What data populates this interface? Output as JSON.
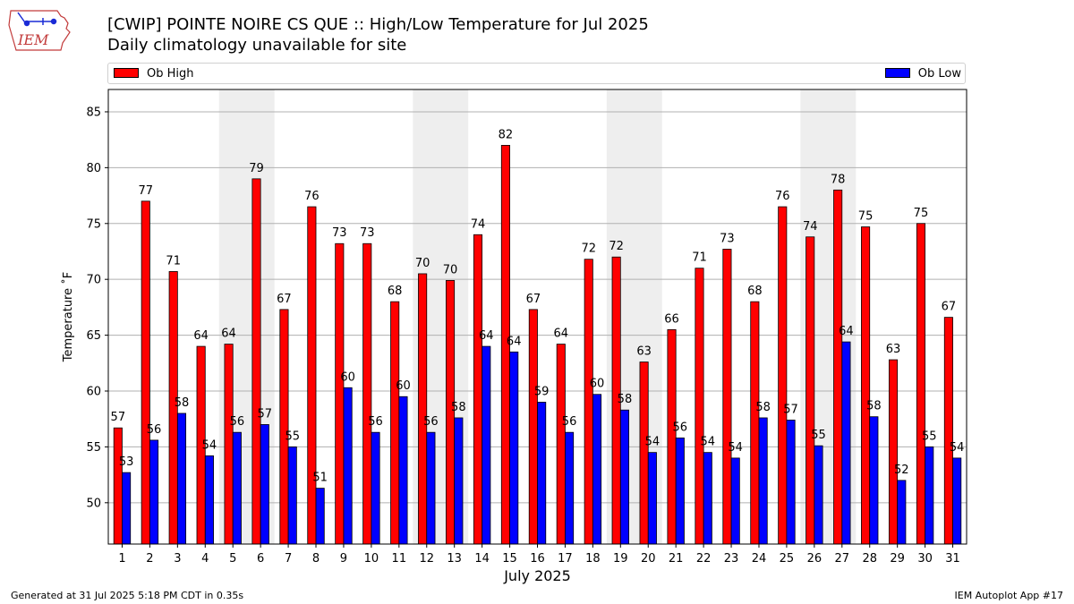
{
  "header": {
    "title": "[CWIP] POINTE NOIRE CS  QUE :: High/Low Temperature for Jul 2025",
    "subtitle": "Daily climatology unavailable for site",
    "logo_text": "IEM"
  },
  "footer": {
    "generated": "Generated at 31 Jul 2025 5:18 PM CDT in 0.35s",
    "app": "IEM Autoplot App #17"
  },
  "colors": {
    "high": "#ff0000",
    "low": "#0000ff",
    "weekend_band": "#eeeeee",
    "grid": "#b0b0b0"
  },
  "chart_data": {
    "type": "bar",
    "title": "[CWIP] POINTE NOIRE CS  QUE :: High/Low Temperature for Jul 2025",
    "subtitle": "Daily climatology unavailable for site",
    "xlabel": "July 2025",
    "ylabel": "Temperature ˚F",
    "ylim": [
      46.3,
      87
    ],
    "yticks": [
      50,
      55,
      60,
      65,
      70,
      75,
      80,
      85
    ],
    "grid": "horizontal",
    "legend_placement": "top, above plot",
    "categories": [
      "1",
      "2",
      "3",
      "4",
      "5",
      "6",
      "7",
      "8",
      "9",
      "10",
      "11",
      "12",
      "13",
      "14",
      "15",
      "16",
      "17",
      "18",
      "19",
      "20",
      "21",
      "22",
      "23",
      "24",
      "25",
      "26",
      "27",
      "28",
      "29",
      "30",
      "31"
    ],
    "shaded_days": [
      [
        5,
        6
      ],
      [
        12,
        13
      ],
      [
        19,
        20
      ],
      [
        26,
        27
      ]
    ],
    "series": [
      {
        "name": "Ob High",
        "color": "#ff0000",
        "values": [
          56.7,
          77.0,
          70.7,
          64.0,
          64.2,
          79.0,
          67.3,
          76.5,
          73.2,
          73.2,
          68.0,
          70.5,
          69.9,
          74.0,
          82.0,
          67.3,
          64.2,
          71.8,
          72.0,
          62.6,
          65.5,
          71.0,
          72.7,
          68.0,
          76.5,
          73.8,
          78.0,
          74.7,
          62.8,
          75.0,
          66.6
        ],
        "labels": [
          "57",
          "77",
          "71",
          "64",
          "64",
          "79",
          "67",
          "76",
          "73",
          "73",
          "68",
          "70",
          "70",
          "74",
          "82",
          "67",
          "64",
          "72",
          "72",
          "63",
          "66",
          "71",
          "73",
          "68",
          "76",
          "74",
          "78",
          "75",
          "63",
          "75",
          "67"
        ]
      },
      {
        "name": "Ob Low",
        "color": "#0000ff",
        "values": [
          52.7,
          55.6,
          58.0,
          54.2,
          56.3,
          57.0,
          55.0,
          51.3,
          60.3,
          56.3,
          59.5,
          56.3,
          57.6,
          64.0,
          63.5,
          59.0,
          56.3,
          59.7,
          58.3,
          54.5,
          55.8,
          54.5,
          54.0,
          57.6,
          57.4,
          55.1,
          64.4,
          57.7,
          52.0,
          55.0,
          54.0
        ],
        "labels": [
          "53",
          "56",
          "58",
          "54",
          "56",
          "57",
          "55",
          "51",
          "60",
          "56",
          "60",
          "56",
          "58",
          "64",
          "64",
          "59",
          "56",
          "60",
          "58",
          "54",
          "56",
          "54",
          "54",
          "58",
          "57",
          "55",
          "64",
          "58",
          "52",
          "55",
          "54"
        ]
      }
    ]
  }
}
